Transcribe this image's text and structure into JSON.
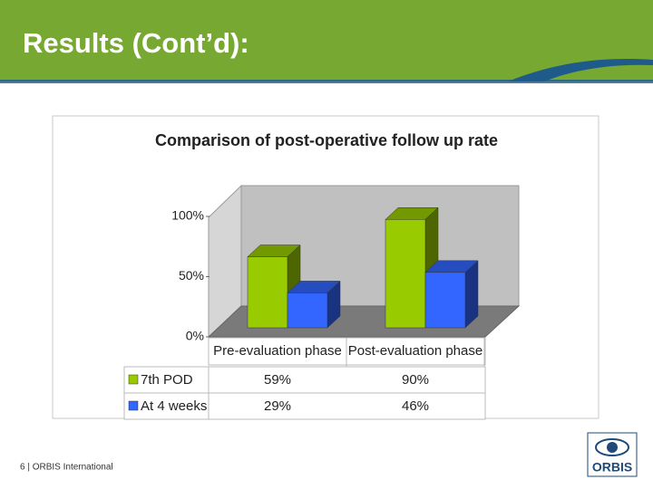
{
  "slide": {
    "title": "Results (Cont’d):",
    "footer": "6 | ORBIS International",
    "logo": "ORBIS"
  },
  "chart_data": {
    "type": "bar",
    "title": "Comparison of post-operative follow up rate",
    "categories": [
      "Pre-evaluation phase",
      "Post-evaluation phase"
    ],
    "series": [
      {
        "name": "7th POD",
        "color": "#99cc00",
        "values": [
          59,
          90
        ],
        "value_labels": [
          "59%",
          "90%"
        ]
      },
      {
        "name": "At 4 weeks",
        "color": "#3366ff",
        "values": [
          29,
          46
        ],
        "value_labels": [
          "29%",
          "46%"
        ]
      }
    ],
    "ylim": [
      0,
      100
    ],
    "yticks": [
      {
        "value": 0,
        "label": "0%"
      },
      {
        "value": 50,
        "label": "50%"
      },
      {
        "value": 100,
        "label": "100%"
      }
    ],
    "data_table": true
  }
}
